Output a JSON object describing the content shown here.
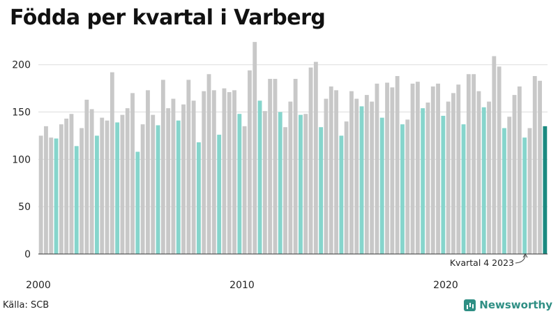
{
  "title": "Födda per kvartal i Varberg",
  "source": "Källa: SCB",
  "brand": {
    "name": "Newsworthy",
    "color": "#2f8f84"
  },
  "chart_data": {
    "type": "bar",
    "title": "Födda per kvartal i Varberg",
    "xlabel": "",
    "ylabel": "",
    "ylim": [
      0,
      230
    ],
    "yticks": [
      0,
      50,
      100,
      150,
      200
    ],
    "xticks": [
      {
        "label": "2000",
        "year": 2000
      },
      {
        "label": "2010",
        "year": 2010
      },
      {
        "label": "2020",
        "year": 2020
      }
    ],
    "start_year": 2000,
    "grid": true,
    "colors": {
      "default": "#c8c8c8",
      "q4": "#86d5cc",
      "latest": "#1b8a80"
    },
    "annotation": "Kvartal 4 2023",
    "values": [
      125,
      135,
      123,
      122,
      137,
      143,
      148,
      114,
      133,
      163,
      153,
      125,
      144,
      141,
      192,
      139,
      147,
      154,
      170,
      108,
      137,
      173,
      147,
      136,
      184,
      154,
      164,
      141,
      158,
      184,
      162,
      118,
      172,
      190,
      173,
      126,
      175,
      171,
      173,
      148,
      135,
      194,
      224,
      162,
      151,
      185,
      185,
      150,
      134,
      161,
      185,
      147,
      148,
      197,
      203,
      134,
      164,
      177,
      173,
      125,
      140,
      172,
      164,
      156,
      168,
      161,
      180,
      144,
      181,
      176,
      188,
      137,
      142,
      180,
      182,
      154,
      160,
      177,
      180,
      146,
      161,
      170,
      179,
      137,
      190,
      190,
      172,
      155,
      161,
      209,
      198,
      133,
      145,
      168,
      177,
      123,
      133,
      188,
      183,
      135
    ]
  }
}
